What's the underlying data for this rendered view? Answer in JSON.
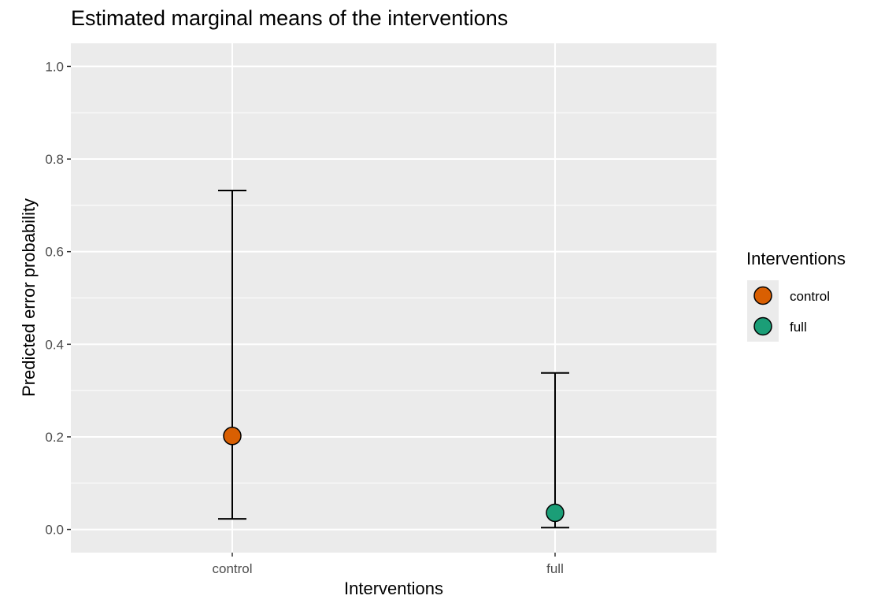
{
  "chart_data": {
    "type": "scatter",
    "title": "Estimated marginal means of the interventions",
    "xlabel": "Interventions",
    "ylabel": "Predicted error probability",
    "categories": [
      "control",
      "full"
    ],
    "ylim": [
      -0.05,
      1.05
    ],
    "yticks": [
      "0.0",
      "0.2",
      "0.4",
      "0.6",
      "0.8",
      "1.0"
    ],
    "grid": true,
    "legend": {
      "title": "Interventions",
      "placement": "right",
      "entries": [
        "control",
        "full"
      ]
    },
    "series": [
      {
        "category": "control",
        "estimate": 0.202,
        "lower": 0.023,
        "upper": 0.732,
        "color": "#D95F02"
      },
      {
        "category": "full",
        "estimate": 0.036,
        "lower": 0.004,
        "upper": 0.338,
        "color": "#1B9E77"
      }
    ],
    "panel_color": "#EBEBEB",
    "grid_color": "#FFFFFF"
  }
}
